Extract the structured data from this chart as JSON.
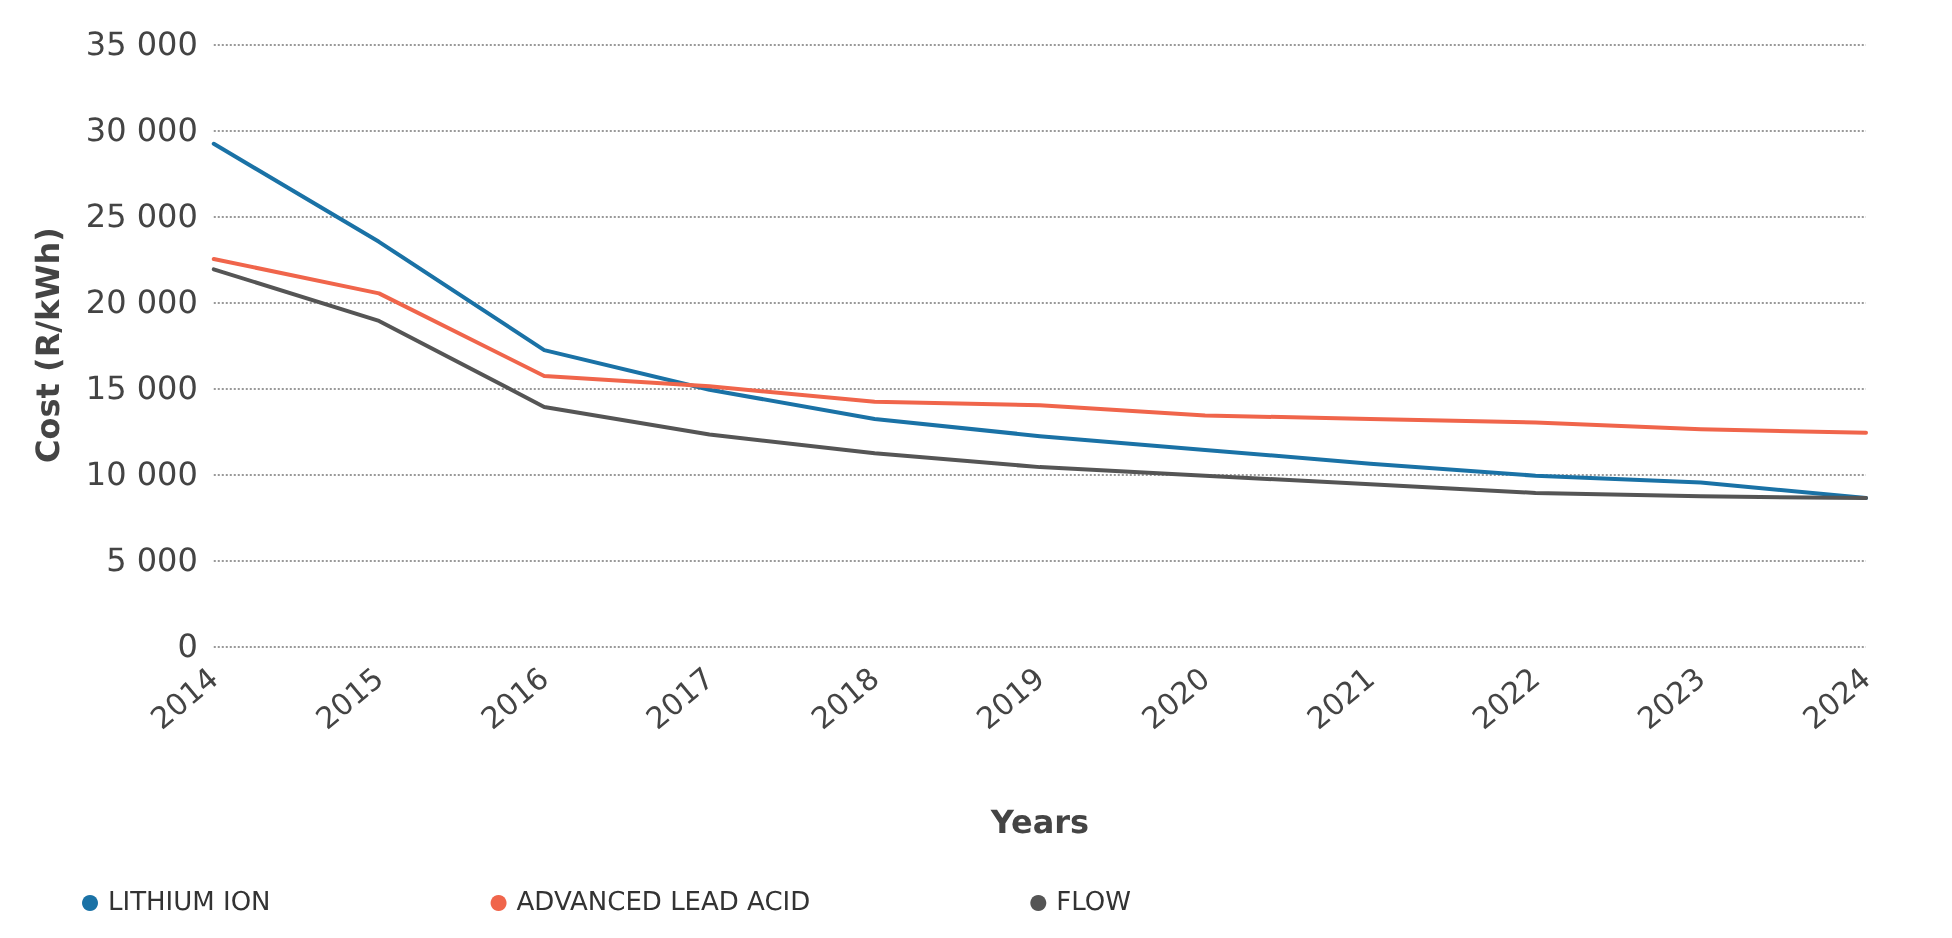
{
  "chart_data": {
    "type": "line",
    "xlabel": "Years",
    "ylabel": "Cost (R/kWh)",
    "categories": [
      "2014",
      "2015",
      "2016",
      "2017",
      "2018",
      "2019",
      "2020",
      "2021",
      "2022",
      "2023",
      "2024"
    ],
    "series": [
      {
        "name": "LITHIUM ION",
        "color": "#1a72a6",
        "values": [
          29200,
          23500,
          17200,
          14900,
          13200,
          12200,
          11400,
          10600,
          9900,
          9500,
          8600
        ]
      },
      {
        "name": "ADVANCED LEAD ACID",
        "color": "#f0654b",
        "values": [
          22500,
          20500,
          15700,
          15100,
          14200,
          14000,
          13400,
          13200,
          13000,
          12600,
          12400
        ]
      },
      {
        "name": "FLOW",
        "color": "#555555",
        "values": [
          21900,
          18900,
          13900,
          12300,
          11200,
          10400,
          9900,
          9400,
          8900,
          8700,
          8600
        ]
      }
    ],
    "ylim": [
      0,
      35000
    ],
    "yticks": [
      {
        "value": 0,
        "label": "0"
      },
      {
        "value": 5000,
        "label": "5 000"
      },
      {
        "value": 10000,
        "label": "10 000"
      },
      {
        "value": 15000,
        "label": "15 000"
      },
      {
        "value": 20000,
        "label": "20 000"
      },
      {
        "value": 25000,
        "label": "25 000"
      },
      {
        "value": 30000,
        "label": "30 000"
      },
      {
        "value": 35000,
        "label": "35 000"
      }
    ],
    "grid": "y",
    "legend": "bottom left",
    "marker": "none",
    "line_style": "solid"
  }
}
